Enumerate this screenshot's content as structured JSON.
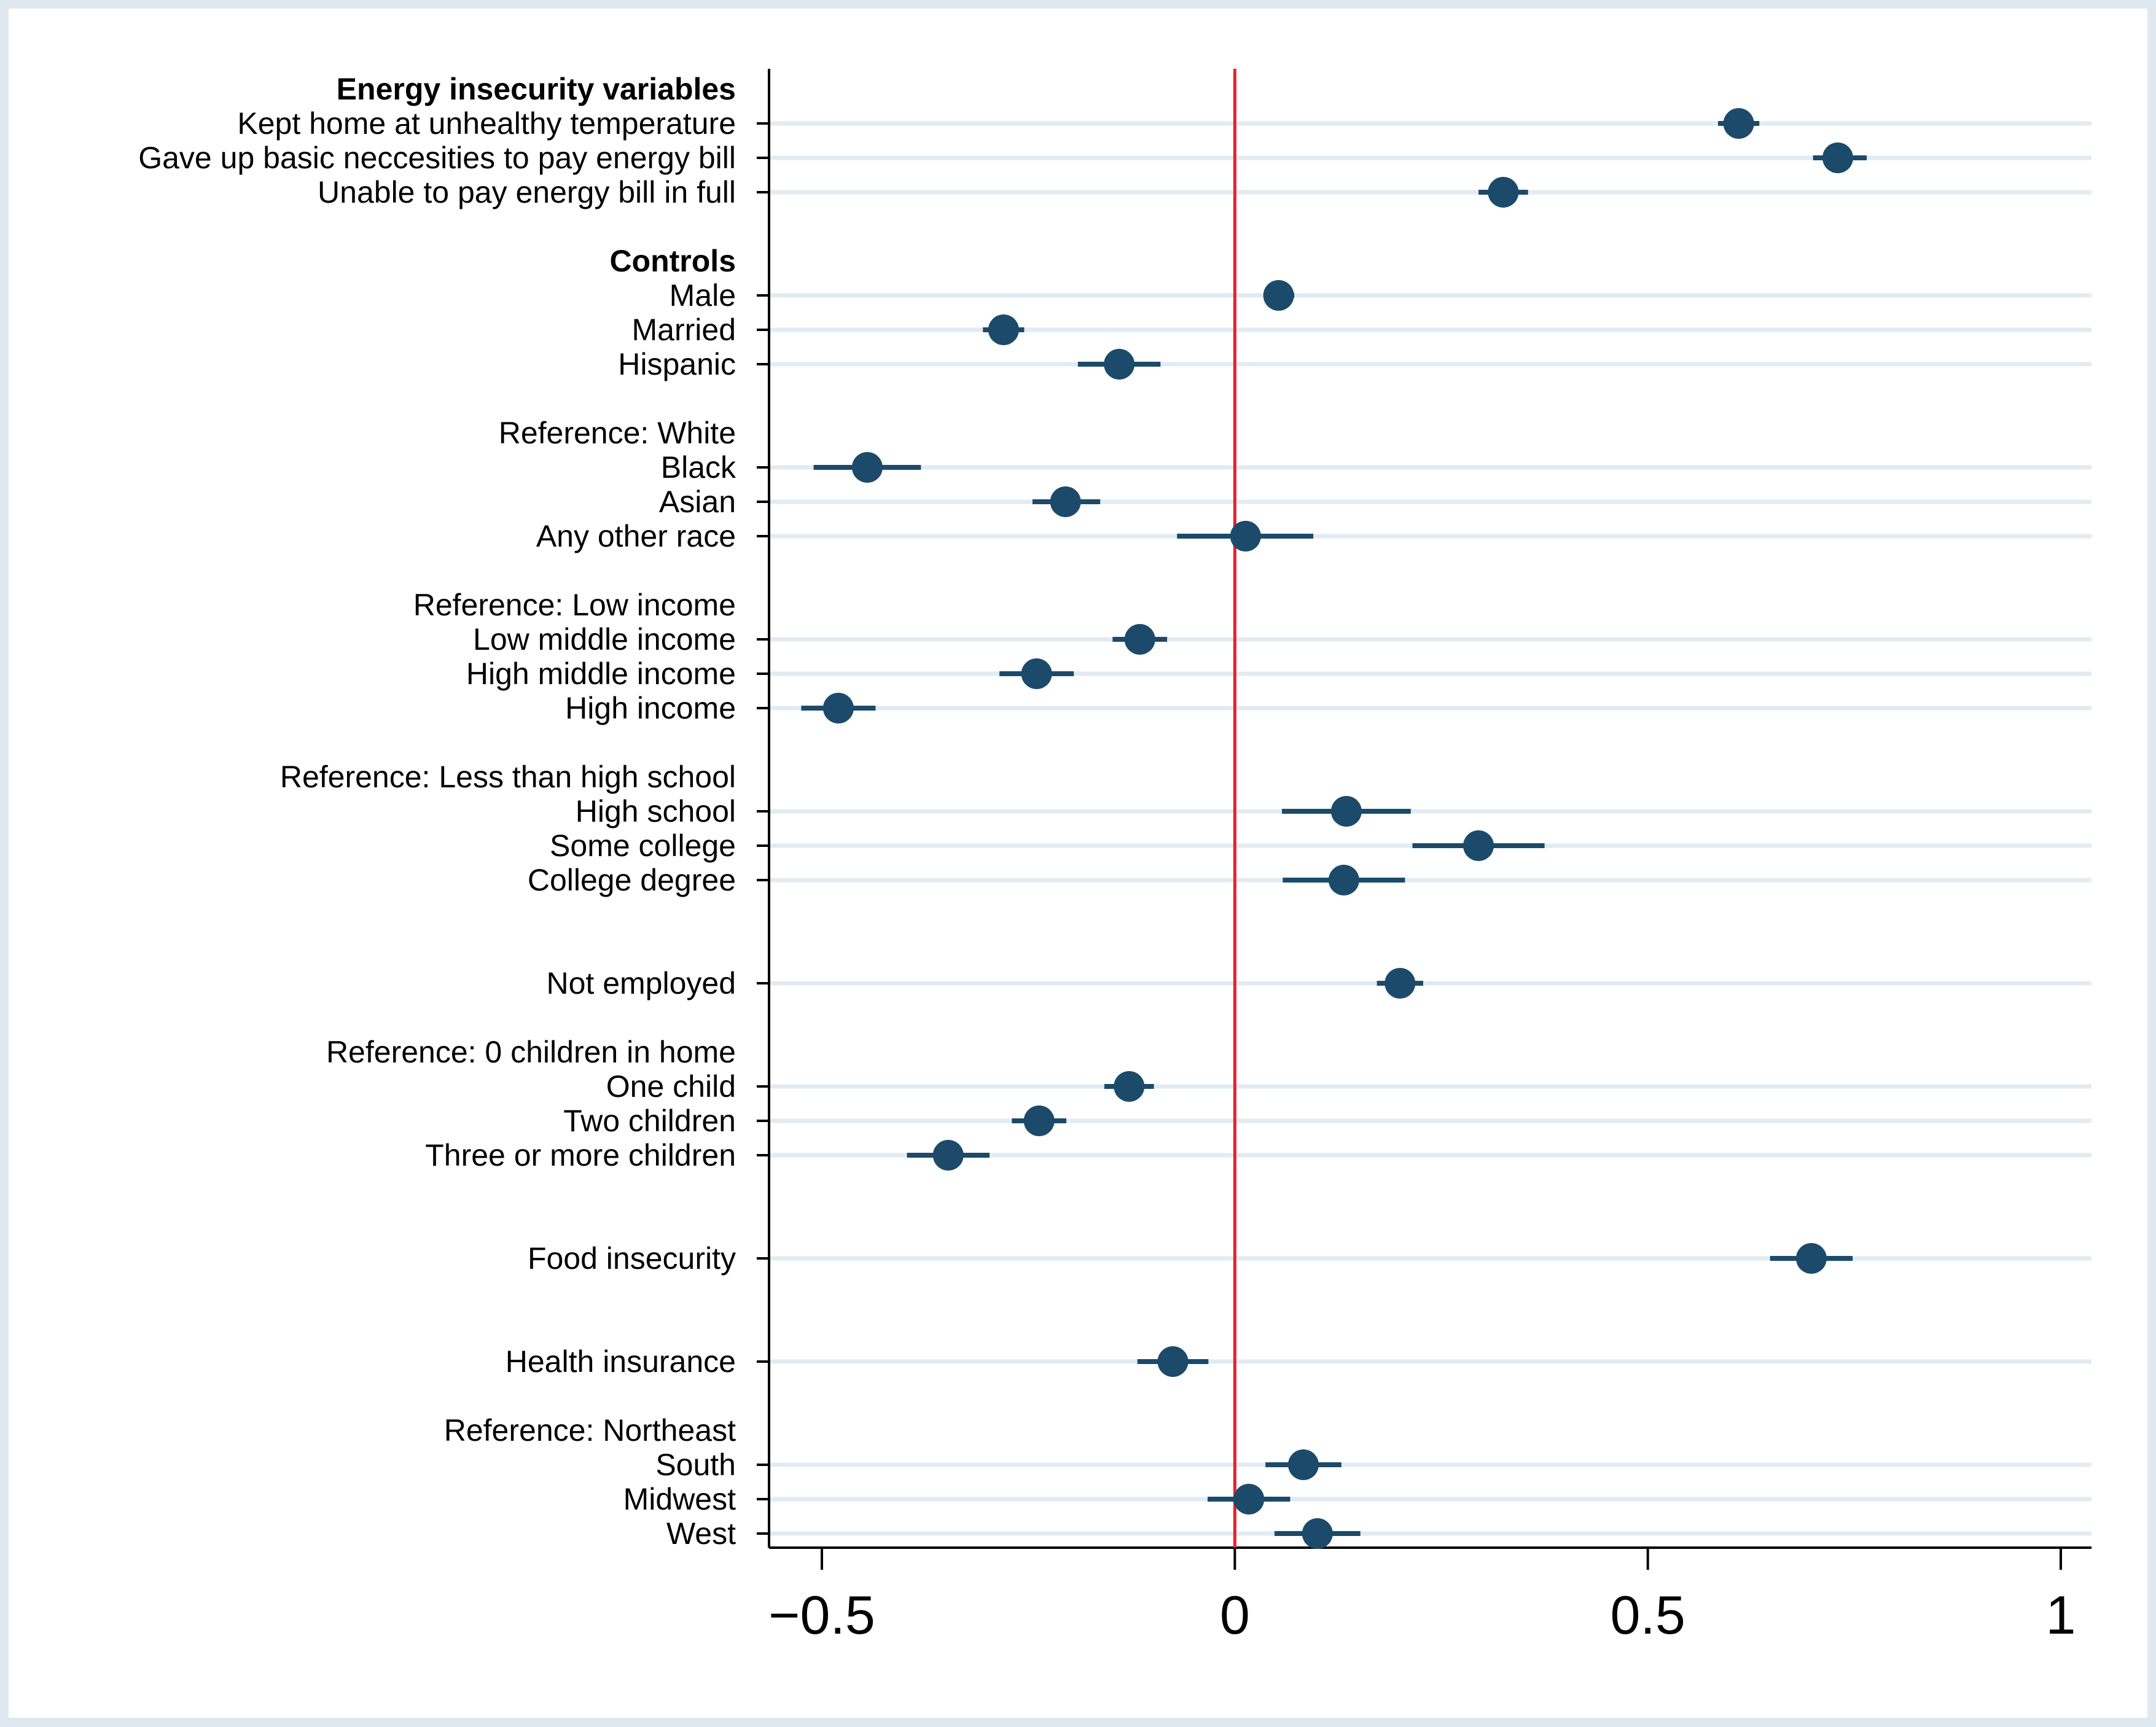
{
  "chart_data": {
    "type": "coefficient-plot",
    "title": "",
    "xlabel": "",
    "ylabel": "",
    "xlim": [
      -0.5,
      1
    ],
    "x_ticks": [
      -0.5,
      0,
      0.5,
      1
    ],
    "x_tick_labels": [
      "−0.5",
      "0",
      "0.5",
      "1"
    ],
    "reference_line": {
      "x": 0,
      "color": "#e8202a"
    },
    "colors": {
      "marker": "#1b4a6b",
      "ci": "#1b4a6b",
      "grid": "#e2ebf1",
      "frame_background": "#ffffff",
      "page_background": "#dfe8ee"
    },
    "rows": [
      {
        "label": "Energy insecurity variables",
        "header": true,
        "bold": true
      },
      {
        "label": "Kept home at unhealthy temperature",
        "estimate": 0.61,
        "ci": [
          0.585,
          0.635
        ]
      },
      {
        "label": "Gave up basic neccesities to pay energy bill",
        "estimate": 0.73,
        "ci": [
          0.7,
          0.765
        ]
      },
      {
        "label": "Unable to pay energy bill in full",
        "estimate": 0.325,
        "ci": [
          0.295,
          0.355
        ]
      },
      {
        "spacer": true
      },
      {
        "label": "Controls",
        "header": true,
        "bold": true
      },
      {
        "label": "Male",
        "estimate": 0.053,
        "ci": [
          0.035,
          0.072
        ]
      },
      {
        "label": "Married",
        "estimate": -0.28,
        "ci": [
          -0.305,
          -0.255
        ]
      },
      {
        "label": "Hispanic",
        "estimate": -0.14,
        "ci": [
          -0.19,
          -0.09
        ]
      },
      {
        "spacer": true
      },
      {
        "label": "Reference: White",
        "header": true
      },
      {
        "label": "Black",
        "estimate": -0.445,
        "ci": [
          -0.51,
          -0.38
        ]
      },
      {
        "label": "Asian",
        "estimate": -0.205,
        "ci": [
          -0.245,
          -0.163
        ]
      },
      {
        "label": "Any other race",
        "estimate": 0.013,
        "ci": [
          -0.07,
          0.095
        ]
      },
      {
        "spacer": true
      },
      {
        "label": "Reference: Low income",
        "header": true
      },
      {
        "label": "Low middle income",
        "estimate": -0.115,
        "ci": [
          -0.148,
          -0.082
        ]
      },
      {
        "label": "High middle income",
        "estimate": -0.24,
        "ci": [
          -0.285,
          -0.195
        ]
      },
      {
        "label": "High income",
        "estimate": -0.48,
        "ci": [
          -0.525,
          -0.435
        ]
      },
      {
        "spacer": true
      },
      {
        "label": "Reference: Less than high school",
        "header": true
      },
      {
        "label": "High school",
        "estimate": 0.135,
        "ci": [
          0.057,
          0.213
        ]
      },
      {
        "label": "Some college",
        "estimate": 0.295,
        "ci": [
          0.215,
          0.375
        ]
      },
      {
        "label": "College degree",
        "estimate": 0.132,
        "ci": [
          0.058,
          0.206
        ]
      },
      {
        "spacer": true
      },
      {
        "spacer": true
      },
      {
        "label": "Not employed",
        "estimate": 0.2,
        "ci": [
          0.172,
          0.228
        ]
      },
      {
        "spacer": true
      },
      {
        "label": "Reference: 0 children in home",
        "header": true
      },
      {
        "label": "One child",
        "estimate": -0.128,
        "ci": [
          -0.158,
          -0.098
        ]
      },
      {
        "label": "Two children",
        "estimate": -0.237,
        "ci": [
          -0.27,
          -0.204
        ]
      },
      {
        "label": "Three or more children",
        "estimate": -0.347,
        "ci": [
          -0.397,
          -0.297
        ]
      },
      {
        "spacer": true
      },
      {
        "spacer": true
      },
      {
        "label": "Food insecurity",
        "estimate": 0.698,
        "ci": [
          0.648,
          0.748
        ]
      },
      {
        "spacer": true
      },
      {
        "spacer": true
      },
      {
        "label": "Health insurance",
        "estimate": -0.075,
        "ci": [
          -0.118,
          -0.032
        ]
      },
      {
        "spacer": true
      },
      {
        "label": "Reference: Northeast",
        "header": true
      },
      {
        "label": "South",
        "estimate": 0.083,
        "ci": [
          0.037,
          0.129
        ]
      },
      {
        "label": "Midwest",
        "estimate": 0.017,
        "ci": [
          -0.033,
          0.067
        ]
      },
      {
        "label": "West",
        "estimate": 0.1,
        "ci": [
          0.048,
          0.152
        ]
      }
    ]
  }
}
